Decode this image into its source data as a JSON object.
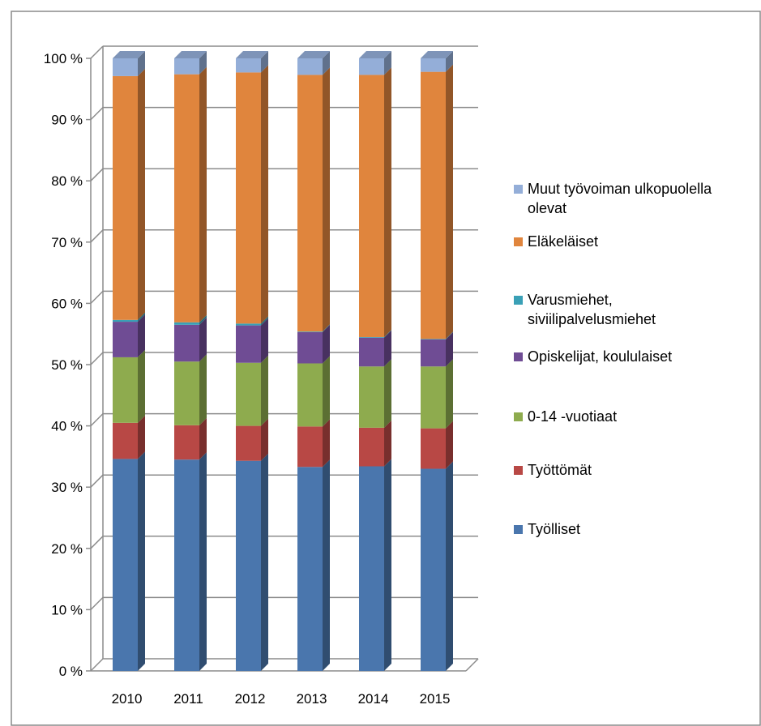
{
  "header": {
    "title_fragment": ""
  },
  "chart_data": {
    "type": "bar",
    "stacked": true,
    "percent": true,
    "categories": [
      "2010",
      "2011",
      "2012",
      "2013",
      "2014",
      "2015"
    ],
    "yticks": [
      "0 %",
      "10 %",
      "20 %",
      "30 %",
      "40 %",
      "50 %",
      "60 %",
      "70 %",
      "80 %",
      "90 %",
      "100 %"
    ],
    "ylim": [
      0,
      100
    ],
    "series": [
      {
        "name": "Työlliset",
        "color": "#4a76ad",
        "values": [
          34.6,
          34.5,
          34.3,
          33.3,
          33.4,
          33.0
        ]
      },
      {
        "name": "Työttömät",
        "color": "#b84845",
        "values": [
          5.9,
          5.6,
          5.7,
          6.6,
          6.3,
          6.6
        ]
      },
      {
        "name": "0-14 -vuotiaat",
        "color": "#8eab4e",
        "values": [
          10.7,
          10.4,
          10.3,
          10.3,
          10.0,
          10.1
        ]
      },
      {
        "name": "Opiskelijat, koululaiset",
        "color": "#6f4c94",
        "values": [
          5.8,
          6.0,
          6.1,
          5.1,
          4.7,
          4.4
        ]
      },
      {
        "name": "Varusmiehet, siviilipalvelusmiehet",
        "color": "#3aa0b6",
        "values": [
          0.3,
          0.4,
          0.3,
          0.1,
          0.1,
          0.1
        ]
      },
      {
        "name": "Eläkeläiset",
        "color": "#e0853d",
        "values": [
          39.8,
          40.5,
          41.0,
          41.9,
          42.8,
          43.6
        ]
      },
      {
        "name": "Muut työvoiman ulkopuolella olevat",
        "color": "#94aed8",
        "values": [
          2.9,
          2.6,
          2.3,
          2.7,
          2.7,
          2.2
        ]
      }
    ],
    "legend": {
      "placement": "right",
      "entries": [
        {
          "label": "Muut työvoiman ulkopuolella olevat",
          "lines": [
            "Muut työvoiman ulkopuolella",
            "olevat"
          ],
          "color": "#94aed8"
        },
        {
          "label": "Eläkeläiset",
          "lines": [
            "Eläkeläiset"
          ],
          "color": "#e0853d"
        },
        {
          "label": "Varusmiehet, siviilipalvelusmiehet",
          "lines": [
            "Varusmiehet,",
            "siviilipalvelusmiehet"
          ],
          "color": "#3aa0b6"
        },
        {
          "label": "Opiskelijat, koululaiset",
          "lines": [
            "Opiskelijat, koululaiset"
          ],
          "color": "#6f4c94"
        },
        {
          "label": "0-14 -vuotiaat",
          "lines": [
            "0-14 -vuotiaat"
          ],
          "color": "#8eab4e"
        },
        {
          "label": "Työttömät",
          "lines": [
            "Työttömät"
          ],
          "color": "#b84845"
        },
        {
          "label": "Työlliset",
          "lines": [
            "Työlliset"
          ],
          "color": "#4a76ad"
        }
      ]
    },
    "grid": true
  }
}
